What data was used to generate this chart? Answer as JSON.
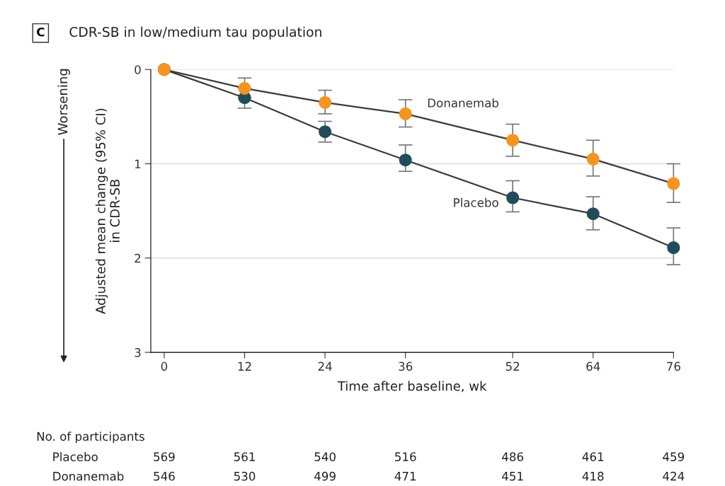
{
  "chart_data": {
    "type": "line",
    "title": "CDR-SB in low/medium tau population",
    "xlabel": "Time after baseline, wk",
    "ylabel": "Adjusted mean change (95% CI)\nin CDR-SB",
    "x": [
      0,
      12,
      24,
      36,
      52,
      64,
      76
    ],
    "series": [
      {
        "name": "Placebo",
        "color": "#1f4e5a",
        "values": [
          0,
          0.3,
          0.66,
          0.96,
          1.36,
          1.53,
          1.89
        ],
        "errors": [
          null,
          [
            0.3,
            0.41
          ],
          [
            0.55,
            0.77
          ],
          [
            0.8,
            1.08
          ],
          [
            1.18,
            1.51
          ],
          [
            1.35,
            1.7
          ],
          [
            1.68,
            2.07
          ]
        ]
      },
      {
        "name": "Donanemab",
        "color": "#f7941d",
        "values": [
          0,
          0.2,
          0.35,
          0.47,
          0.75,
          0.95,
          1.21
        ],
        "errors": [
          null,
          [
            0.09,
            0.2
          ],
          [
            0.22,
            0.47
          ],
          [
            0.32,
            0.61
          ],
          [
            0.58,
            0.92
          ],
          [
            0.75,
            1.13
          ],
          [
            1.0,
            1.41
          ]
        ]
      }
    ],
    "xlim": [
      -2,
      76
    ],
    "xticks": [
      0,
      12,
      24,
      36,
      52,
      64,
      76
    ],
    "ylim": [
      3,
      0
    ],
    "yticks": [
      0,
      1,
      2,
      3
    ],
    "grid": "y",
    "marker": "circle",
    "line_style": "solid",
    "legend": false,
    "annotations": [
      "C",
      "Worsening",
      "No. of participants",
      "Placebo",
      "569",
      "561",
      "540",
      "516",
      "486",
      "461",
      "459",
      "Donanemab",
      "546",
      "530",
      "499",
      "471",
      "451",
      "418",
      "424"
    ]
  }
}
